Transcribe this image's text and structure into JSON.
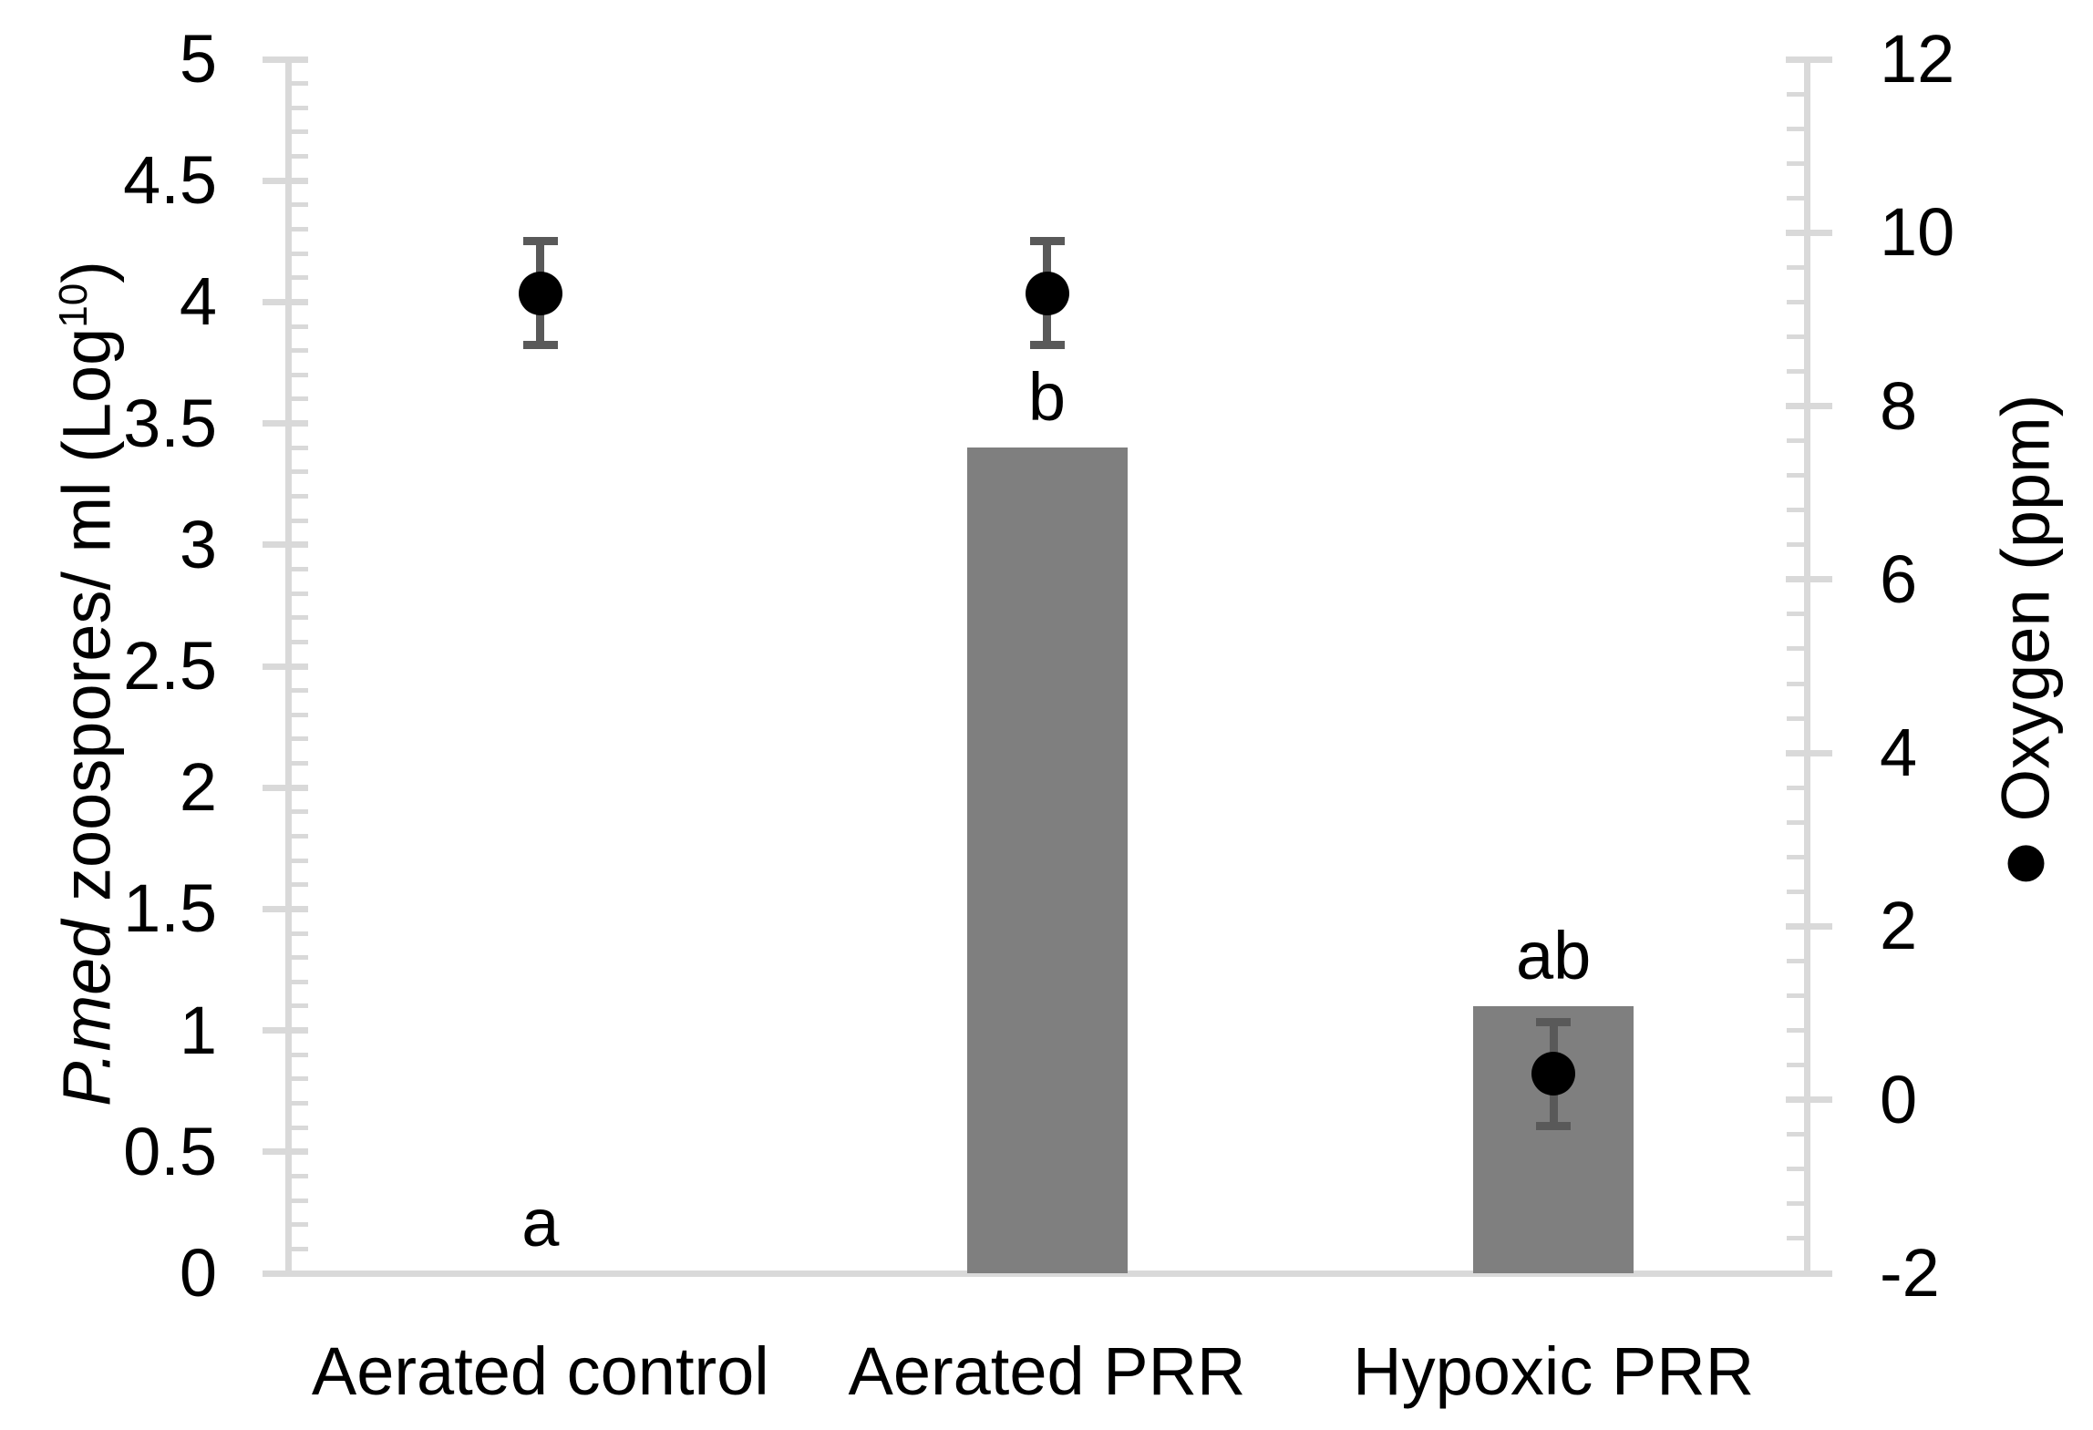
{
  "chart_data": {
    "type": "bar",
    "subtype": "combo-bar-scatter-dual-axis",
    "categories": [
      "Aerated control",
      "Aerated PRR",
      "Hypoxic PRR"
    ],
    "series": [
      {
        "name": "P.med zoospores/ ml (Log10)",
        "type": "bar",
        "axis": "left",
        "values": [
          0,
          3.4,
          1.1
        ],
        "sig_letters": [
          "a",
          "b",
          "ab"
        ],
        "color": "#7f7f7f"
      },
      {
        "name": "Oxygen (ppm)",
        "type": "scatter",
        "axis": "right",
        "values": [
          9.3,
          9.3,
          0.3
        ],
        "error_ppm": 0.6,
        "color": "#000000",
        "error_color": "#595959",
        "marker": "filled-circle"
      }
    ],
    "left_axis": {
      "title_italic": "P.med",
      "title_rest": " zoospores/ ml (Log",
      "title_sup": "10",
      "title_close": ")",
      "min": 0,
      "max": 5,
      "major_unit": 0.5,
      "minor_unit": 0.1,
      "ticks": [
        "5",
        "4.5",
        "4",
        "3.5",
        "3",
        "2.5",
        "2",
        "1.5",
        "1",
        "0.5",
        "0"
      ]
    },
    "right_axis": {
      "title": "Oxygen (ppm)",
      "legend_marker_icon": "filled-circle",
      "min": -2,
      "max": 12,
      "major_unit": 2,
      "minor_unit": 0.4,
      "ticks": [
        "12",
        "10",
        "8",
        "6",
        "4",
        "2",
        "0",
        "-2"
      ]
    },
    "grid": false,
    "legend_position": "right-rotated"
  },
  "colors": {
    "bar": "#7f7f7f",
    "point": "#000000",
    "error_bar": "#595959",
    "axis_line": "#d9d9d9",
    "text": "#000000",
    "background": "#ffffff"
  }
}
